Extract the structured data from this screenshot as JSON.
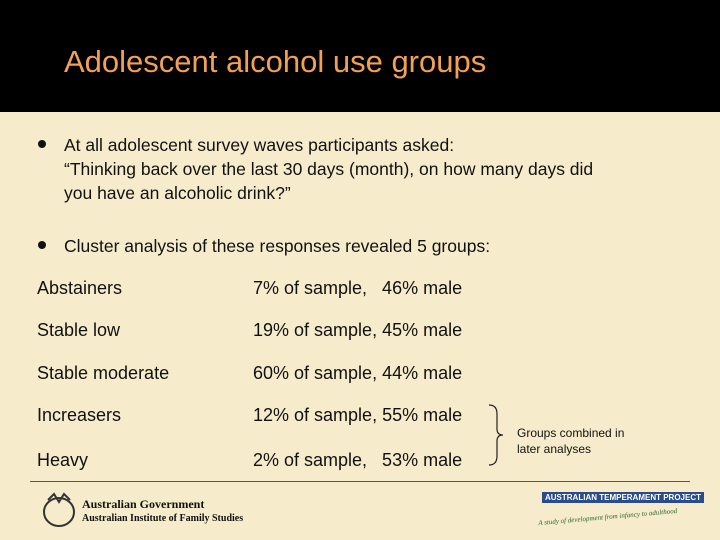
{
  "header": {
    "title": "Adolescent alcohol use groups"
  },
  "bullets": [
    {
      "lines": [
        "At all adolescent survey waves participants asked:",
        "“Thinking back over the last 30 days (month), on how many days did",
        "you have an alcoholic drink?”"
      ]
    },
    {
      "lines": [
        "Cluster analysis of these responses revealed 5 groups:"
      ]
    }
  ],
  "table": {
    "rows": [
      [
        "Abstainers",
        "7% of sample,   46% male"
      ],
      [
        "Stable low",
        "19% of sample, 45% male"
      ],
      [
        "Stable moderate",
        "60% of sample, 44% male"
      ],
      [
        "Increasers",
        "12% of sample, 55% male"
      ],
      [
        "Heavy",
        "2% of sample,   53% male"
      ]
    ]
  },
  "note": {
    "lines": [
      "Groups combined in",
      "later analyses"
    ]
  },
  "footer": {
    "left_logo": [
      "Australian Government",
      "Australian Institute of Family Studies"
    ],
    "right_logo": [
      "AUSTRALIAN TEMPERAMENT PROJECT",
      "A study of development from infancy to adulthood"
    ]
  }
}
